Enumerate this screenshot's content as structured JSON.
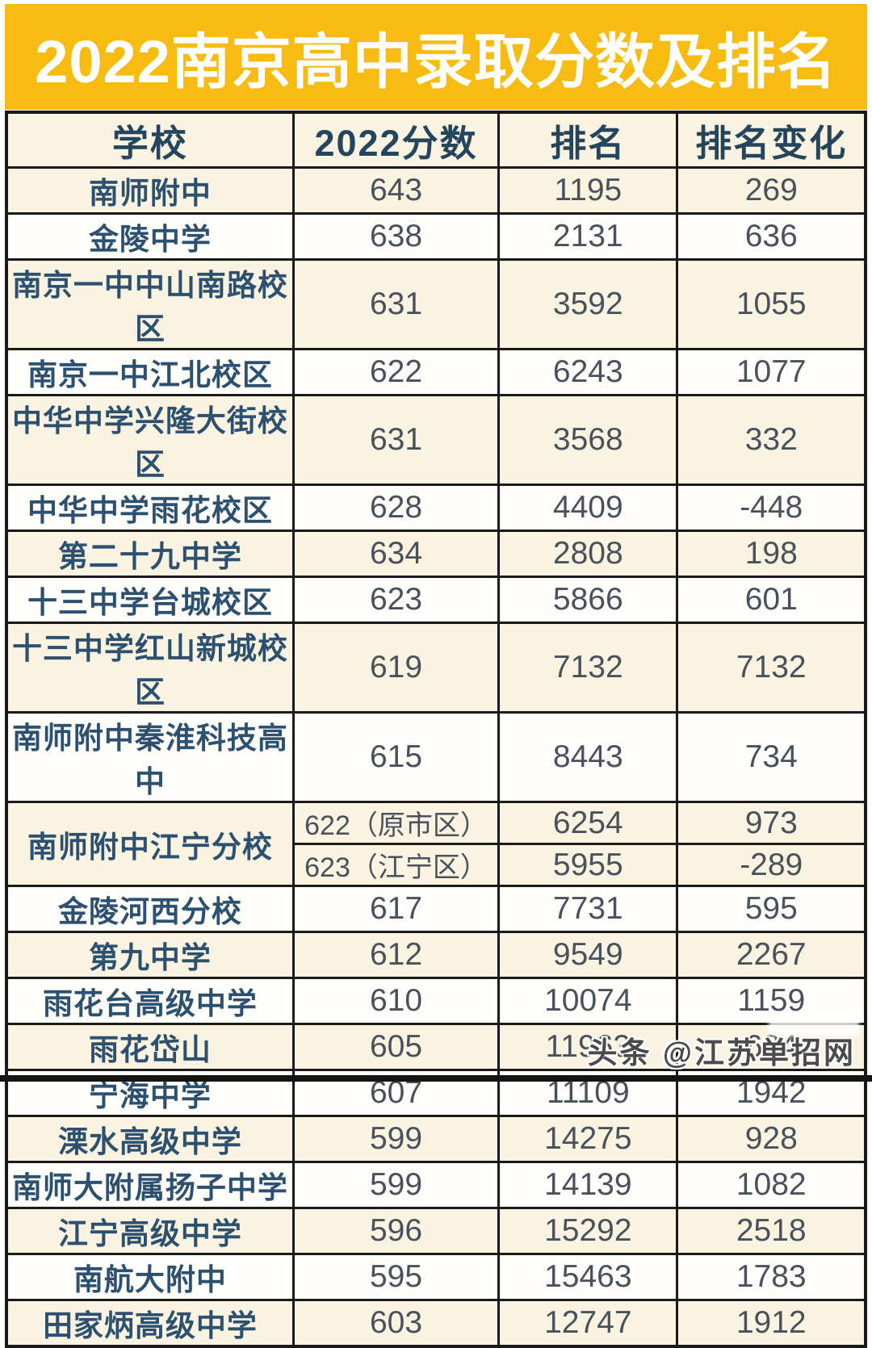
{
  "title": "2022南京高中录取分数及排名",
  "watermark": "头条 @江苏单招网",
  "colors": {
    "banner_yellow": "#f7bb12",
    "title_white": "#ffffff",
    "header_navy": "#24455e",
    "school_navy": "#2c506f",
    "number_gray": "#49525c",
    "row_cream": "#faf3e1",
    "row_white": "#fffefb",
    "border_dark": "#1a1a1a"
  },
  "chart_data": {
    "type": "table",
    "title": "2022南京高中录取分数及排名",
    "columns": [
      "学校",
      "2022分数",
      "排名",
      "排名变化"
    ],
    "rows": [
      {
        "school": "南师附中",
        "score": "643",
        "rank": "1195",
        "change": "269"
      },
      {
        "school": "金陵中学",
        "score": "638",
        "rank": "2131",
        "change": "636"
      },
      {
        "school": "南京一中中山南路校区",
        "score": "631",
        "rank": "3592",
        "change": "1055"
      },
      {
        "school": "南京一中江北校区",
        "score": "622",
        "rank": "6243",
        "change": "1077"
      },
      {
        "school": "中华中学兴隆大街校区",
        "score": "631",
        "rank": "3568",
        "change": "332"
      },
      {
        "school": "中华中学雨花校区",
        "score": "628",
        "rank": "4409",
        "change": "-448"
      },
      {
        "school": "第二十九中学",
        "score": "634",
        "rank": "2808",
        "change": "198"
      },
      {
        "school": "十三中学台城校区",
        "score": "623",
        "rank": "5866",
        "change": "601"
      },
      {
        "school": "十三中学红山新城校区",
        "score": "619",
        "rank": "7132",
        "change": "7132"
      },
      {
        "school": "南师附中秦淮科技高中",
        "score": "615",
        "rank": "8443",
        "change": "734"
      },
      {
        "school": "南师附中江宁分校",
        "sub_rows": [
          {
            "score": "622（原市区）",
            "rank": "6254",
            "change": "973"
          },
          {
            "score": "623（江宁区）",
            "rank": "5955",
            "change": "-289"
          }
        ]
      },
      {
        "school": "金陵河西分校",
        "score": "617",
        "rank": "7731",
        "change": "595"
      },
      {
        "school": "第九中学",
        "score": "612",
        "rank": "9549",
        "change": "2267"
      },
      {
        "school": "雨花台高级中学",
        "score": "610",
        "rank": "10074",
        "change": "1159"
      },
      {
        "school": "雨花岱山",
        "score": "605",
        "rank": "11963",
        "change": "684"
      },
      {
        "school": "宁海中学",
        "score": "607",
        "rank": "11109",
        "change": "1942"
      },
      {
        "school": "溧水高级中学",
        "score": "599",
        "rank": "14275",
        "change": "928"
      },
      {
        "school": "南师大附属扬子中学",
        "score": "599",
        "rank": "14139",
        "change": "1082"
      },
      {
        "school": "江宁高级中学",
        "score": "596",
        "rank": "15292",
        "change": "2518"
      },
      {
        "school": "南航大附中",
        "score": "595",
        "rank": "15463",
        "change": "1783"
      },
      {
        "school": "田家炳高级中学",
        "score": "603",
        "rank": "12747",
        "change": "1912"
      }
    ]
  }
}
